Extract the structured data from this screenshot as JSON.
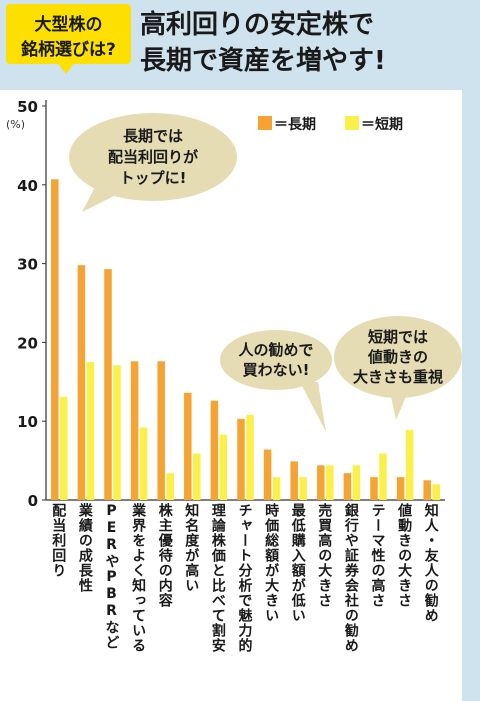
{
  "header": {
    "tag_line1": "大型株の",
    "tag_line2": "銘柄選びは?",
    "headline_line1": "高利回りの安定株で",
    "headline_line2": "長期で資産を増やす!"
  },
  "bubbles": {
    "top": [
      "長期では",
      "配当利回りが",
      "トップに!"
    ],
    "middle": [
      "人の勧めで",
      "買わない!"
    ],
    "right": [
      "短期では",
      "値動きの",
      "大きさも重視"
    ]
  },
  "colors": {
    "long": "#f5a333",
    "short": "#fbef4a",
    "bubble": "#e6dcb4",
    "tag": "#fde000",
    "band": "#cfe3ef"
  },
  "chart_data": {
    "type": "bar",
    "unit": "(%)",
    "ylim": [
      0,
      50
    ],
    "yticks": [
      0,
      10,
      20,
      30,
      40,
      50
    ],
    "legend": {
      "long": "＝長期",
      "short": "＝短期",
      "position": "top-right"
    },
    "categories": [
      "配当利回り",
      "業績の成長性",
      "PERやPBRなど",
      "業界をよく知っている",
      "株主優待の内容",
      "知名度が高い",
      "理論株価と比べて割安",
      "チャート分析で魅力的",
      "時価総額が大きい",
      "最低購入額が低い",
      "売買高の大きさ",
      "銀行や証券会社の勧め",
      "テーマ性の高さ",
      "値動きの大きさ",
      "知人・友人の勧め"
    ],
    "series": [
      {
        "name": "長期",
        "values": [
          40.7,
          29.8,
          29.3,
          17.6,
          17.6,
          13.6,
          12.6,
          10.3,
          6.4,
          4.9,
          4.4,
          3.4,
          2.9,
          2.9,
          2.5
        ]
      },
      {
        "name": "短期",
        "values": [
          13.1,
          17.5,
          17.1,
          9.2,
          3.4,
          5.9,
          8.3,
          10.8,
          2.9,
          2.9,
          4.4,
          4.4,
          5.9,
          8.9,
          2.0
        ]
      }
    ]
  }
}
